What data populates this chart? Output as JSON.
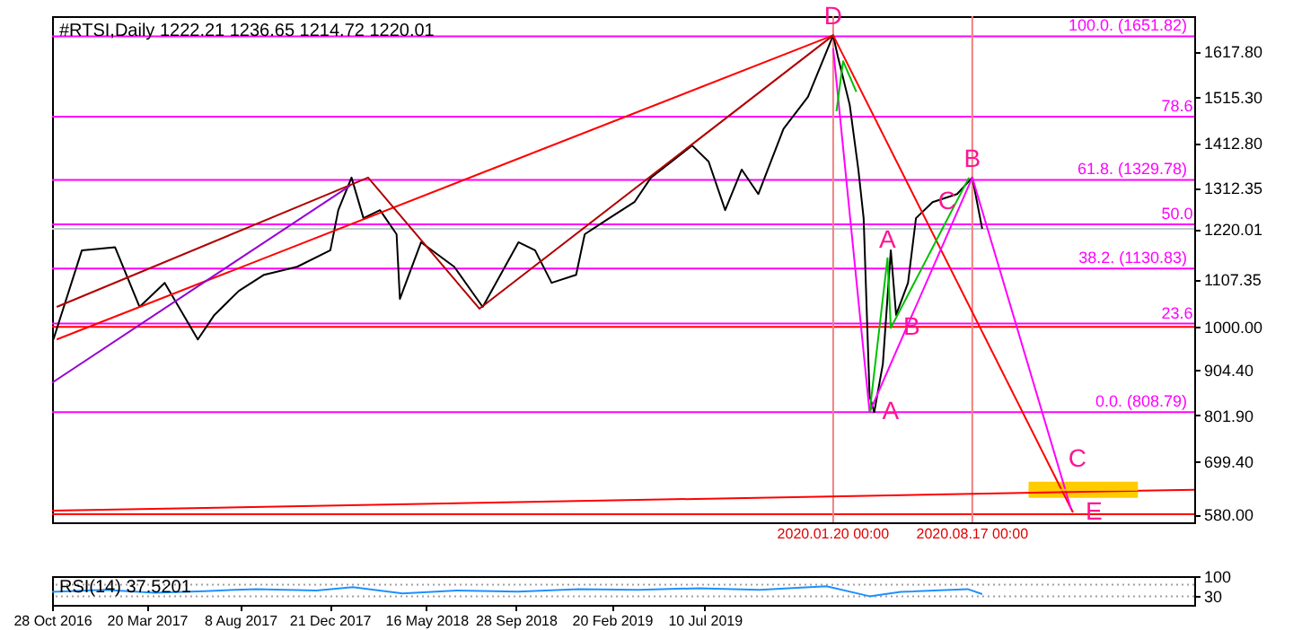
{
  "chart_data": [
    {
      "type": "line",
      "title": "#RTSI,Daily  1222.21 1236.65 1214.72 1220.01",
      "xlim": [
        "2016-10-28",
        "2021-07-18"
      ],
      "ylim": [
        562,
        1697
      ],
      "yticks": [
        {
          "value": 1617.8,
          "label": "1617.80"
        },
        {
          "value": 1515.3,
          "label": "1515.30"
        },
        {
          "value": 1412.8,
          "label": "1412.80"
        },
        1312.35,
        1220.01,
        1107.35,
        {
          "value": 1000,
          "label": "1000.00"
        },
        {
          "value": 904.4,
          "label": "904.40"
        },
        {
          "value": 801.9,
          "label": "801.90"
        },
        {
          "value": 699.4,
          "label": "699.40"
        },
        {
          "value": 580,
          "label": "580.00"
        }
      ],
      "tick_labels": "y",
      "series": [
        {
          "color": "#000000",
          "x": [
            "2016-10-30",
            "2016-12-12",
            "2017-01-31",
            "2017-03-09",
            "2017-04-16",
            "2017-06-05",
            "2017-06-30",
            "2017-08-06",
            "2017-09-13",
            "2017-11-02",
            "2017-12-22",
            "2018-01-03",
            "2018-01-23",
            "2018-02-10",
            "2018-03-07",
            "2018-04-01",
            "2018-04-06",
            "2018-05-08",
            "2018-06-27",
            "2018-08-09",
            "2018-10-02",
            "2018-10-27",
            "2018-11-21",
            "2018-12-28",
            "2019-01-10",
            "2019-02-16",
            "2019-03-26",
            "2019-04-20",
            "2019-06-21",
            "2019-07-16",
            "2019-08-10",
            "2019-09-04",
            "2019-09-29",
            "2019-11-06",
            "2019-12-13",
            "2020-01-20",
            "2020-01-27",
            "2020-02-14",
            "2020-02-27",
            "2020-03-06",
            "2020-03-15",
            "2020-03-22",
            "2020-04-04",
            "2020-04-16",
            "2020-04-24",
            "2020-05-12",
            "2020-05-24",
            "2020-06-18",
            "2020-07-25",
            "2020-08-17",
            "2020-09-01"
          ],
          "values": [
            972,
            1172,
            1179,
            1045,
            1099,
            972,
            1027,
            1081,
            1117,
            1135,
            1172,
            1262,
            1335,
            1244,
            1262,
            1208,
            1063,
            1190,
            1135,
            1045,
            1190,
            1172,
            1099,
            1117,
            1208,
            1244,
            1280,
            1335,
            1407,
            1371,
            1262,
            1353,
            1298,
            1444,
            1516,
            1654,
            1607,
            1498,
            1353,
            1244,
            845,
            809,
            917,
            1172,
            1027,
            1099,
            1244,
            1280,
            1298,
            1335,
            1220.01
          ]
        },
        {
          "color": "#ff0000",
          "x": [
            "2016-11-04",
            "2020-01-20"
          ],
          "values": [
            972,
            1654
          ]
        },
        {
          "color": "#b00000",
          "x": [
            "2016-11-04",
            "2018-02-17",
            "2018-08-04",
            "2020-01-20"
          ],
          "values": [
            1045,
            1335,
            1041,
            1654
          ]
        },
        {
          "color": "#9400d3",
          "x": [
            "2016-10-28",
            "2018-01-21"
          ],
          "values": [
            875,
            1317
          ]
        },
        {
          "color": "#ff0000",
          "x": [
            "2020-01-20",
            "2021-01-16"
          ],
          "values": [
            1654,
            584
          ]
        },
        {
          "color": "#ff00ff",
          "x": [
            "2020-01-20",
            "2020-03-15",
            "2020-08-17",
            "2021-01-13"
          ],
          "values": [
            1625,
            809,
            1335,
            592
          ]
        },
        {
          "color": "#00c000",
          "x": [
            "2020-03-15",
            "2020-04-11",
            "2020-04-16",
            "2020-08-12"
          ],
          "values": [
            809,
            1154,
            998,
            1335
          ]
        },
        {
          "color": "#00c000",
          "x": [
            "2020-01-25",
            "2020-02-04",
            "2020-02-24"
          ],
          "values": [
            1484,
            1596,
            1527
          ]
        },
        {
          "color": "#ff0000",
          "x": [
            "2016-10-28",
            "2021-07-18"
          ],
          "values": [
            588,
            635
          ]
        },
        {
          "color": "#ffcc00",
          "x": [
            "2020-11-10",
            "2021-04-24"
          ],
          "values": [
            635,
            635
          ],
          "lower": [
            617,
            617
          ],
          "upper": [
            653,
            653
          ]
        }
      ],
      "ref_lines": [
        {
          "axis": "y",
          "value": 1651.82,
          "label": "100.0.  (1651.82)",
          "color": "#ff00ff"
        },
        {
          "axis": "y",
          "value": 1471.4,
          "color": "#ff00ff"
        },
        {
          "axis": "y",
          "value": 1329.78,
          "label": "61.8.  (1329.78)",
          "color": "#ff00ff"
        },
        {
          "axis": "y",
          "value": 1230.3,
          "color": "#ff00ff"
        },
        {
          "axis": "y",
          "value": 1130.83,
          "label": "38.2.  (1130.83)",
          "color": "#ff00ff"
        },
        {
          "axis": "y",
          "value": 1007.7,
          "color": "#ff00ff"
        },
        {
          "axis": "y",
          "value": 808.79,
          "label": "0.0.  (808.79)",
          "color": "#ff00ff"
        },
        {
          "axis": "y",
          "value": 1220.01,
          "color": "#c0c8d0"
        },
        {
          "axis": "y",
          "value": 1000,
          "color": "#ff0000"
        },
        {
          "axis": "y",
          "value": 580,
          "color": "#ff0000"
        },
        {
          "axis": "x",
          "value": "2020-01-20",
          "label": "2020.01.20 00:00",
          "color": "#f08080"
        },
        {
          "axis": "x",
          "value": "2020-08-17",
          "label": "2020.08.17 00:00",
          "color": "#f08080"
        }
      ],
      "annotations": [
        {
          "text": "D",
          "x": "2020-01-20",
          "y": 1654
        },
        {
          "text": "A",
          "x": "2020-03-15",
          "y": 809
        },
        {
          "text": "B",
          "x": "2020-08-17",
          "y": 1335
        },
        {
          "text": "C",
          "x": "2020-12-21",
          "y": 703
        },
        {
          "text": "E",
          "x": "2021-01-16",
          "y": 584
        },
        {
          "text": "A",
          "x": "2020-04-11",
          "y": 1154
        },
        {
          "text": "B",
          "x": "2020-04-16",
          "y": 998
        },
        {
          "text": "C",
          "x": "2020-07-10",
          "y": 1241
        },
        {
          "text": "78.6",
          "x": "2021-07-16",
          "y": 1471.4
        },
        {
          "text": "50.0",
          "x": "2021-07-16",
          "y": 1230.3
        },
        {
          "text": "23.6",
          "x": "2021-07-16",
          "y": 1007.7
        }
      ]
    },
    {
      "type": "line",
      "title": "RSI(14) 37.5201",
      "xlim": [
        "2016-10-28",
        "2021-07-18"
      ],
      "xticks": [
        {
          "value": "2016-10-28",
          "label": "28 Oct 2016"
        },
        {
          "value": "2017-03-20",
          "label": "20 Mar 2017"
        },
        {
          "value": "2017-08-08",
          "label": "8 Aug 2017"
        },
        {
          "value": "2017-12-21",
          "label": "21 Dec 2017"
        },
        {
          "value": "2018-05-16",
          "label": "16 May 2018"
        },
        {
          "value": "2018-09-28",
          "label": "28 Sep 2018"
        },
        {
          "value": "2019-02-20",
          "label": "20 Feb 2019"
        },
        {
          "value": "2019-07-10",
          "label": "10 Jul 2019"
        }
      ],
      "ylim": [
        0,
        100
      ],
      "yticks": [
        100,
        30
      ],
      "series": [
        {
          "color": "#1e90ff",
          "x": [
            "2016-10-28",
            "2017-01-15",
            "2017-04-01",
            "2017-06-15",
            "2017-09-01",
            "2017-12-01",
            "2018-01-25",
            "2018-04-10",
            "2018-07-01",
            "2018-10-01",
            "2019-01-01",
            "2019-04-01",
            "2019-07-01",
            "2019-10-01",
            "2020-01-10",
            "2020-03-15",
            "2020-05-01",
            "2020-08-10",
            "2020-09-01"
          ],
          "values": [
            45,
            52,
            42,
            48,
            55,
            50,
            62,
            40,
            50,
            46,
            55,
            52,
            58,
            52,
            65,
            30,
            45,
            55,
            37.5
          ]
        }
      ],
      "ref_lines": [
        {
          "axis": "y",
          "value": 70,
          "color": "#a0a0a0",
          "line_style": "dotted"
        },
        {
          "axis": "y",
          "value": 30,
          "color": "#a0a0a0",
          "line_style": "dotted"
        }
      ]
    }
  ]
}
